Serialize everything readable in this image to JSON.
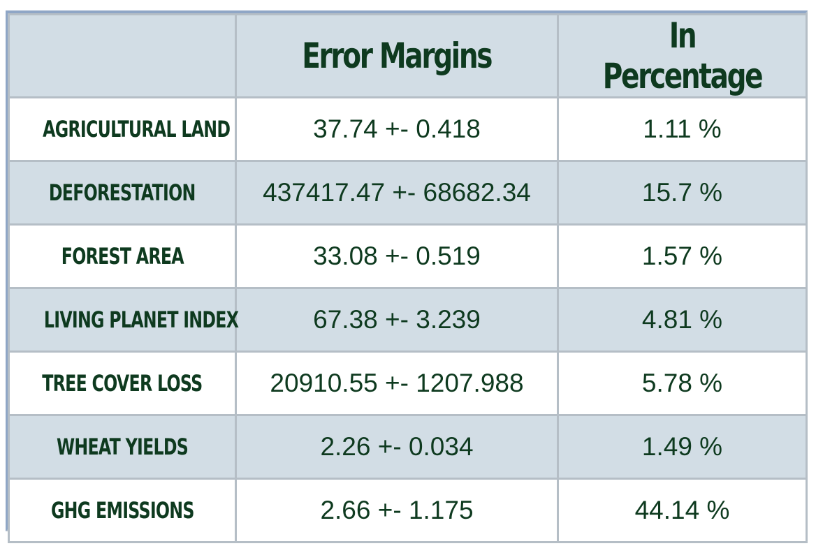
{
  "chart_data": {
    "type": "table",
    "columns": [
      "",
      "Error Margins",
      "In Percentage"
    ],
    "rows": [
      {
        "label": "AGRICULTURAL LAND",
        "value": 37.74,
        "error": 0.418,
        "text": "37.74 +- 0.418",
        "percent": 1.11,
        "percent_text": "1.11 %"
      },
      {
        "label": "DEFORESTATION",
        "value": 437417.47,
        "error": 68682.34,
        "text": "437417.47 +- 68682.34",
        "percent": 15.7,
        "percent_text": "15.7 %"
      },
      {
        "label": "FOREST AREA",
        "value": 33.08,
        "error": 0.519,
        "text": "33.08 +- 0.519",
        "percent": 1.57,
        "percent_text": "1.57 %"
      },
      {
        "label": "LIVING PLANET INDEX",
        "value": 67.38,
        "error": 3.239,
        "text": "67.38 +- 3.239",
        "percent": 4.81,
        "percent_text": "4.81 %"
      },
      {
        "label": "TREE COVER LOSS",
        "value": 20910.55,
        "error": 1207.988,
        "text": "20910.55 +- 1207.988",
        "percent": 5.78,
        "percent_text": "5.78 %"
      },
      {
        "label": "WHEAT YIELDS",
        "value": 2.26,
        "error": 0.034,
        "text": "2.26 +- 0.034",
        "percent": 1.49,
        "percent_text": "1.49 %"
      },
      {
        "label": "GHG EMISSIONS",
        "value": 2.66,
        "error": 1.175,
        "text": "2.66 +- 1.175",
        "percent": 44.14,
        "percent_text": "44.14 %"
      }
    ]
  },
  "colors": {
    "text": "#0e3a1f",
    "header_bg": "#d2dde5",
    "stripe_bg": "#d2dde5",
    "row_bg": "#ffffff",
    "grid": "#b5bec6",
    "outer_border": "#8fa6c6"
  }
}
